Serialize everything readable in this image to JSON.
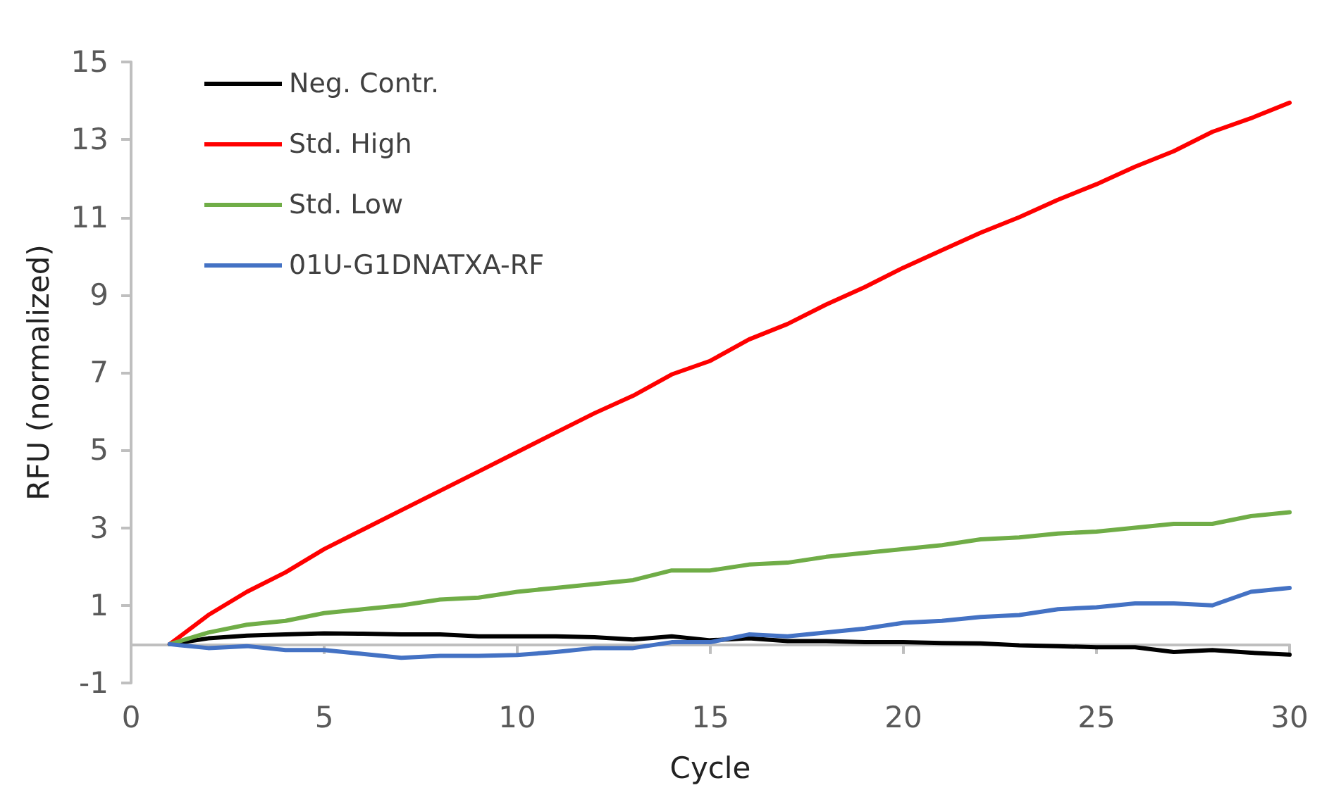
{
  "chart_data": {
    "type": "line",
    "xlabel": "Cycle",
    "ylabel": "RFU (normalized)",
    "x": [
      1,
      2,
      3,
      4,
      5,
      6,
      7,
      8,
      9,
      10,
      11,
      12,
      13,
      14,
      15,
      16,
      17,
      18,
      19,
      20,
      21,
      22,
      23,
      24,
      25,
      26,
      27,
      28,
      29,
      30
    ],
    "xlim": [
      0,
      30
    ],
    "xticks": [
      0,
      5,
      10,
      15,
      20,
      25,
      30
    ],
    "ylim": [
      -1,
      15
    ],
    "yticks": [
      -1,
      1,
      3,
      5,
      7,
      9,
      11,
      13,
      15
    ],
    "grid": false,
    "legend": "top left",
    "marker": "none",
    "line_style": "solid",
    "series": [
      {
        "name": "Neg. Contr.",
        "color": "#000000",
        "values": [
          0,
          0.15,
          0.22,
          0.25,
          0.28,
          0.27,
          0.25,
          0.25,
          0.2,
          0.2,
          0.2,
          0.18,
          0.12,
          0.2,
          0.1,
          0.15,
          0.08,
          0.08,
          0.05,
          0.05,
          0.03,
          0.02,
          -0.03,
          -0.05,
          -0.08,
          -0.08,
          -0.2,
          -0.15,
          -0.22,
          -0.27
        ]
      },
      {
        "name": "Std. High",
        "color": "#ff0000",
        "values": [
          0,
          0.75,
          1.35,
          1.85,
          2.45,
          2.95,
          3.45,
          3.95,
          4.45,
          4.95,
          5.45,
          5.95,
          6.4,
          6.95,
          7.3,
          7.85,
          8.25,
          8.75,
          9.2,
          9.7,
          10.15,
          10.6,
          11.0,
          11.45,
          11.85,
          12.3,
          12.7,
          13.2,
          13.55,
          13.95
        ]
      },
      {
        "name": "Std. Low",
        "color": "#70ad47",
        "values": [
          0,
          0.3,
          0.5,
          0.6,
          0.8,
          0.9,
          1.0,
          1.15,
          1.2,
          1.35,
          1.45,
          1.55,
          1.65,
          1.9,
          1.9,
          2.05,
          2.1,
          2.25,
          2.35,
          2.45,
          2.55,
          2.7,
          2.75,
          2.85,
          2.9,
          3.0,
          3.1,
          3.1,
          3.3,
          3.4
        ]
      },
      {
        "name": "01U-G1DNATXA-RF",
        "color": "#4472c4",
        "values": [
          0,
          -0.1,
          -0.05,
          -0.15,
          -0.15,
          -0.25,
          -0.35,
          -0.3,
          -0.3,
          -0.28,
          -0.2,
          -0.1,
          -0.1,
          0.05,
          0.05,
          0.25,
          0.2,
          0.3,
          0.4,
          0.55,
          0.6,
          0.7,
          0.75,
          0.9,
          0.95,
          1.05,
          1.05,
          1.0,
          1.35,
          1.45
        ]
      }
    ]
  }
}
